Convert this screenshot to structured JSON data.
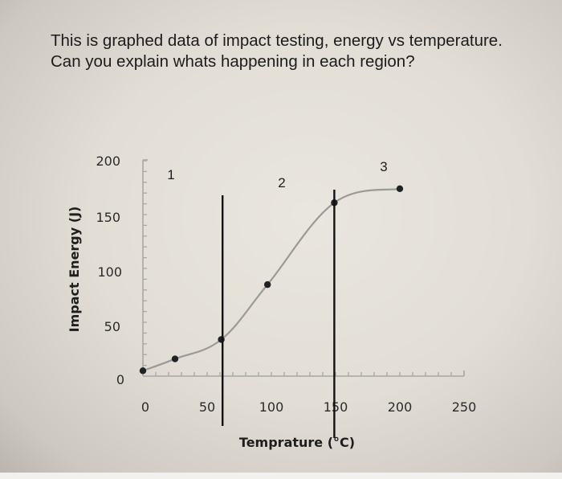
{
  "question": {
    "text": "This is graphed data of impact testing, energy vs temperature. Can you explain whats happening in each region?"
  },
  "chart_data": {
    "type": "line",
    "title": "",
    "xlabel": "Temprature (°C)",
    "ylabel": "Impact Energy (J)",
    "xlim": [
      0,
      250
    ],
    "ylim": [
      0,
      200
    ],
    "x_ticks": [
      "0",
      "50",
      "100",
      "150",
      "200",
      "250"
    ],
    "y_ticks": [
      "0",
      "50",
      "100",
      "150",
      "200"
    ],
    "grid": false,
    "legend": null,
    "series": [
      {
        "name": "Impact Energy",
        "x": [
          0,
          25,
          61,
          97,
          149,
          200
        ],
        "values": [
          5,
          16,
          34,
          85,
          161,
          174
        ],
        "color": "#9a9a96",
        "marker_color": "#1f2326",
        "smooth": true
      }
    ],
    "annotations": {
      "vertical_lines": [
        {
          "x": 62,
          "color": "#111111"
        },
        {
          "x": 149,
          "color": "#111111"
        }
      ],
      "region_labels": [
        {
          "text": "1",
          "x": 22,
          "y": 188
        },
        {
          "text": "2",
          "x": 108,
          "y": 181
        },
        {
          "text": "3",
          "x": 188,
          "y": 195
        }
      ]
    }
  }
}
